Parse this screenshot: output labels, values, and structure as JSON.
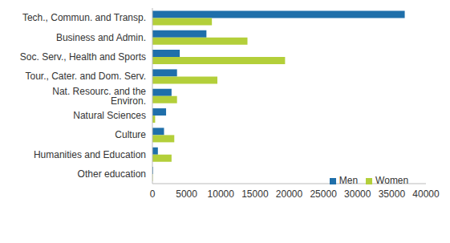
{
  "chart_data": {
    "type": "bar",
    "orientation": "horizontal",
    "categories": [
      "Tech., Commun. and Transp.",
      "Business and Admin.",
      "Soc. Serv., Health and Sports",
      "Tour., Cater. and Dom. Serv.",
      "Nat. Resourc. and the Environ.",
      "Natural Sciences",
      "Culture",
      "Humanities and Education",
      "Other education"
    ],
    "series": [
      {
        "name": "Men",
        "color": "#1f6faa",
        "values": [
          36900,
          7900,
          4000,
          3600,
          2800,
          2000,
          1700,
          800,
          100
        ]
      },
      {
        "name": "Women",
        "color": "#b3cf3a",
        "values": [
          8700,
          13900,
          19400,
          9500,
          3600,
          400,
          3200,
          2800,
          50
        ]
      }
    ],
    "xlim": [
      0,
      40000
    ],
    "xticks": [
      0,
      5000,
      10000,
      15000,
      20000,
      25000,
      30000,
      35000,
      40000
    ],
    "legend": "lower right",
    "grid": false
  }
}
